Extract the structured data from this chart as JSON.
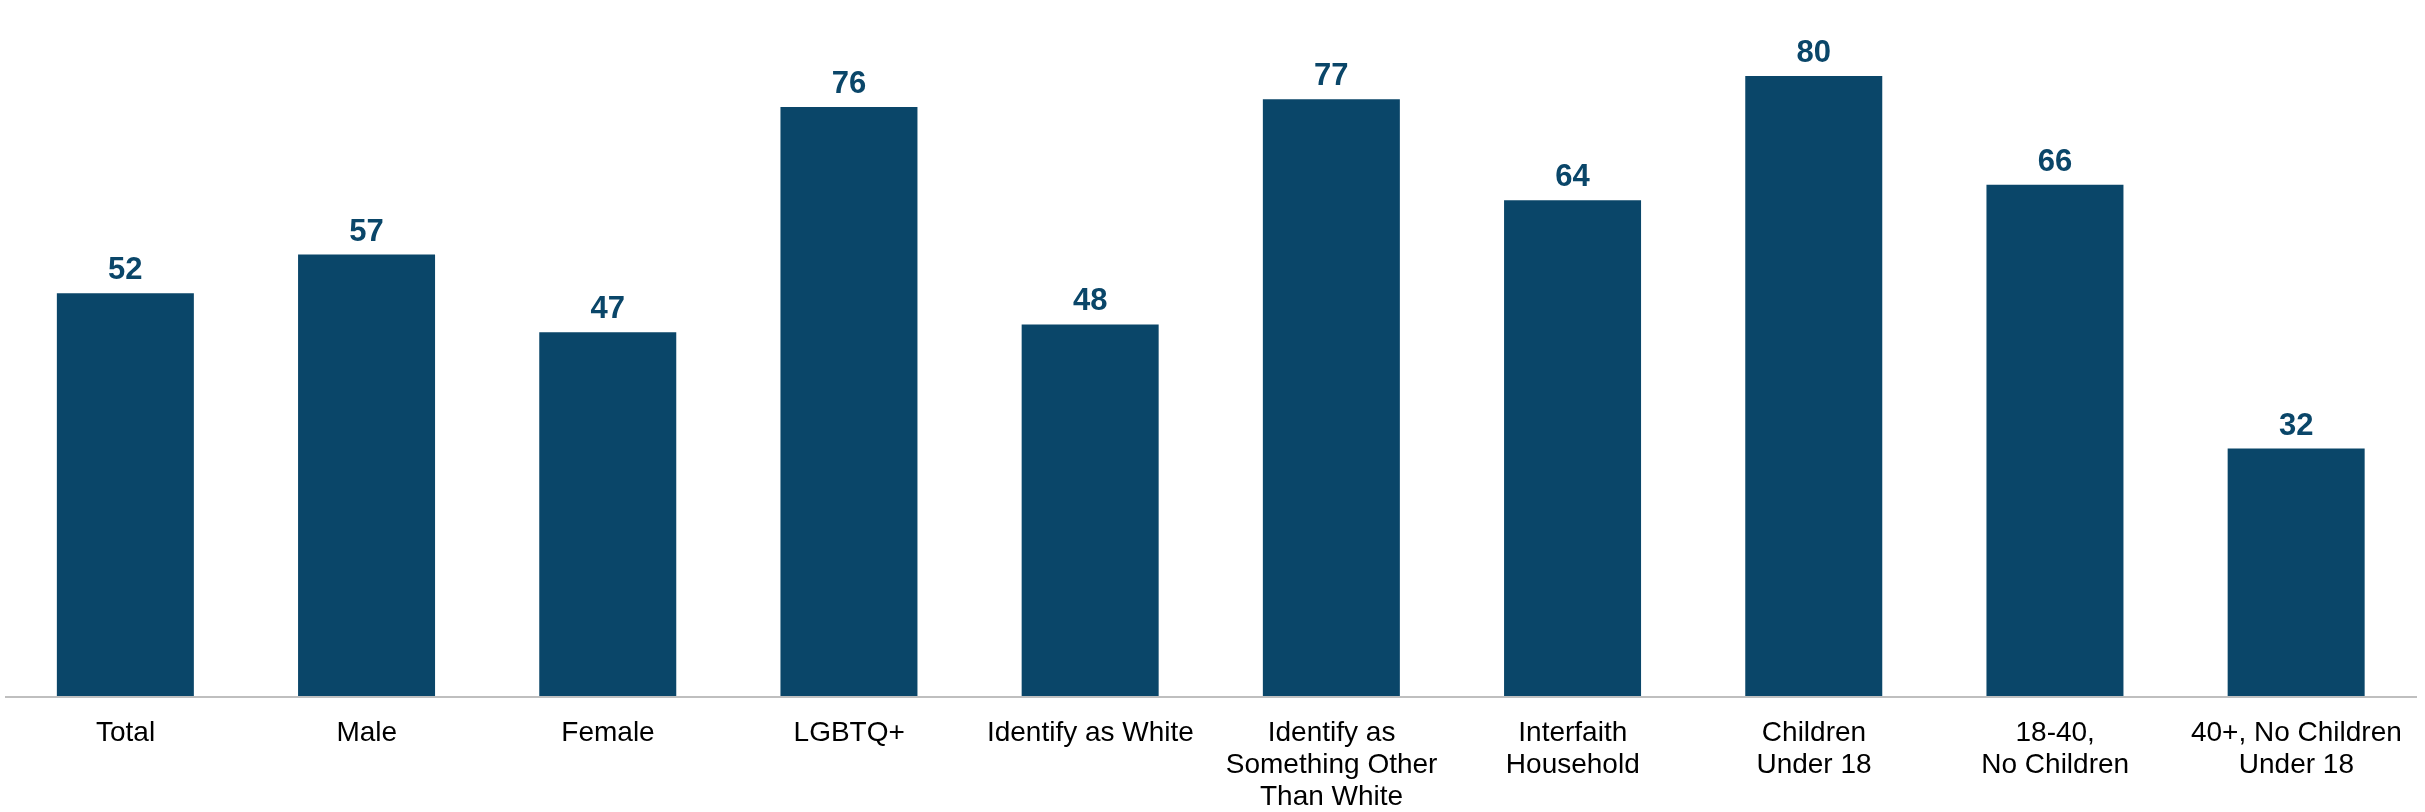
{
  "chart_data": {
    "type": "bar",
    "categories": [
      "Total",
      "Male",
      "Female",
      "LGBTQ+",
      "Identify as White",
      "Identify as\nSomething Other\nThan White",
      "Interfaith\nHousehold",
      "Children\nUnder 18",
      "18-40,\nNo Children",
      "40+, No Children\nUnder 18"
    ],
    "values": [
      52,
      57,
      47,
      76,
      48,
      77,
      64,
      80,
      66,
      32
    ],
    "color": "#0a4669",
    "data_labels": true
  }
}
